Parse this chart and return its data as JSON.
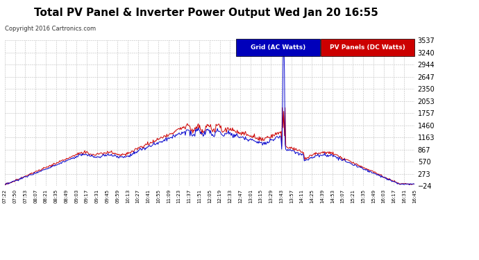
{
  "title": "Total PV Panel & Inverter Power Output Wed Jan 20 16:55",
  "copyright": "Copyright 2016 Cartronics.com",
  "legend_grid": "Grid (AC Watts)",
  "legend_pv": "PV Panels (DC Watts)",
  "legend_grid_bg": "#0000bb",
  "legend_pv_bg": "#cc0000",
  "grid_color": "#0000cc",
  "pv_color": "#cc0000",
  "bg_color": "#ffffff",
  "plot_bg_color": "#ffffff",
  "grid_line_color": "#bbbbbb",
  "ylim_min": -23.5,
  "ylim_max": 3536.9,
  "yticks": [
    -23.5,
    273.2,
    569.9,
    866.6,
    1163.3,
    1460.0,
    1756.7,
    2053.4,
    2350.1,
    2646.8,
    2943.5,
    3240.2,
    3536.9
  ],
  "x_labels": [
    "07:22",
    "07:50",
    "07:53",
    "08:07",
    "08:21",
    "08:35",
    "08:49",
    "09:03",
    "09:17",
    "09:31",
    "09:45",
    "09:59",
    "10:13",
    "10:27",
    "10:41",
    "10:55",
    "11:09",
    "11:23",
    "11:37",
    "11:51",
    "12:05",
    "12:19",
    "12:33",
    "12:47",
    "13:01",
    "13:15",
    "13:29",
    "13:43",
    "13:57",
    "14:11",
    "14:25",
    "14:39",
    "14:53",
    "15:07",
    "15:21",
    "15:35",
    "15:49",
    "16:03",
    "16:17",
    "16:31",
    "16:45"
  ],
  "title_fontsize": 11,
  "copyright_fontsize": 6,
  "ytick_fontsize": 7,
  "xtick_fontsize": 5
}
